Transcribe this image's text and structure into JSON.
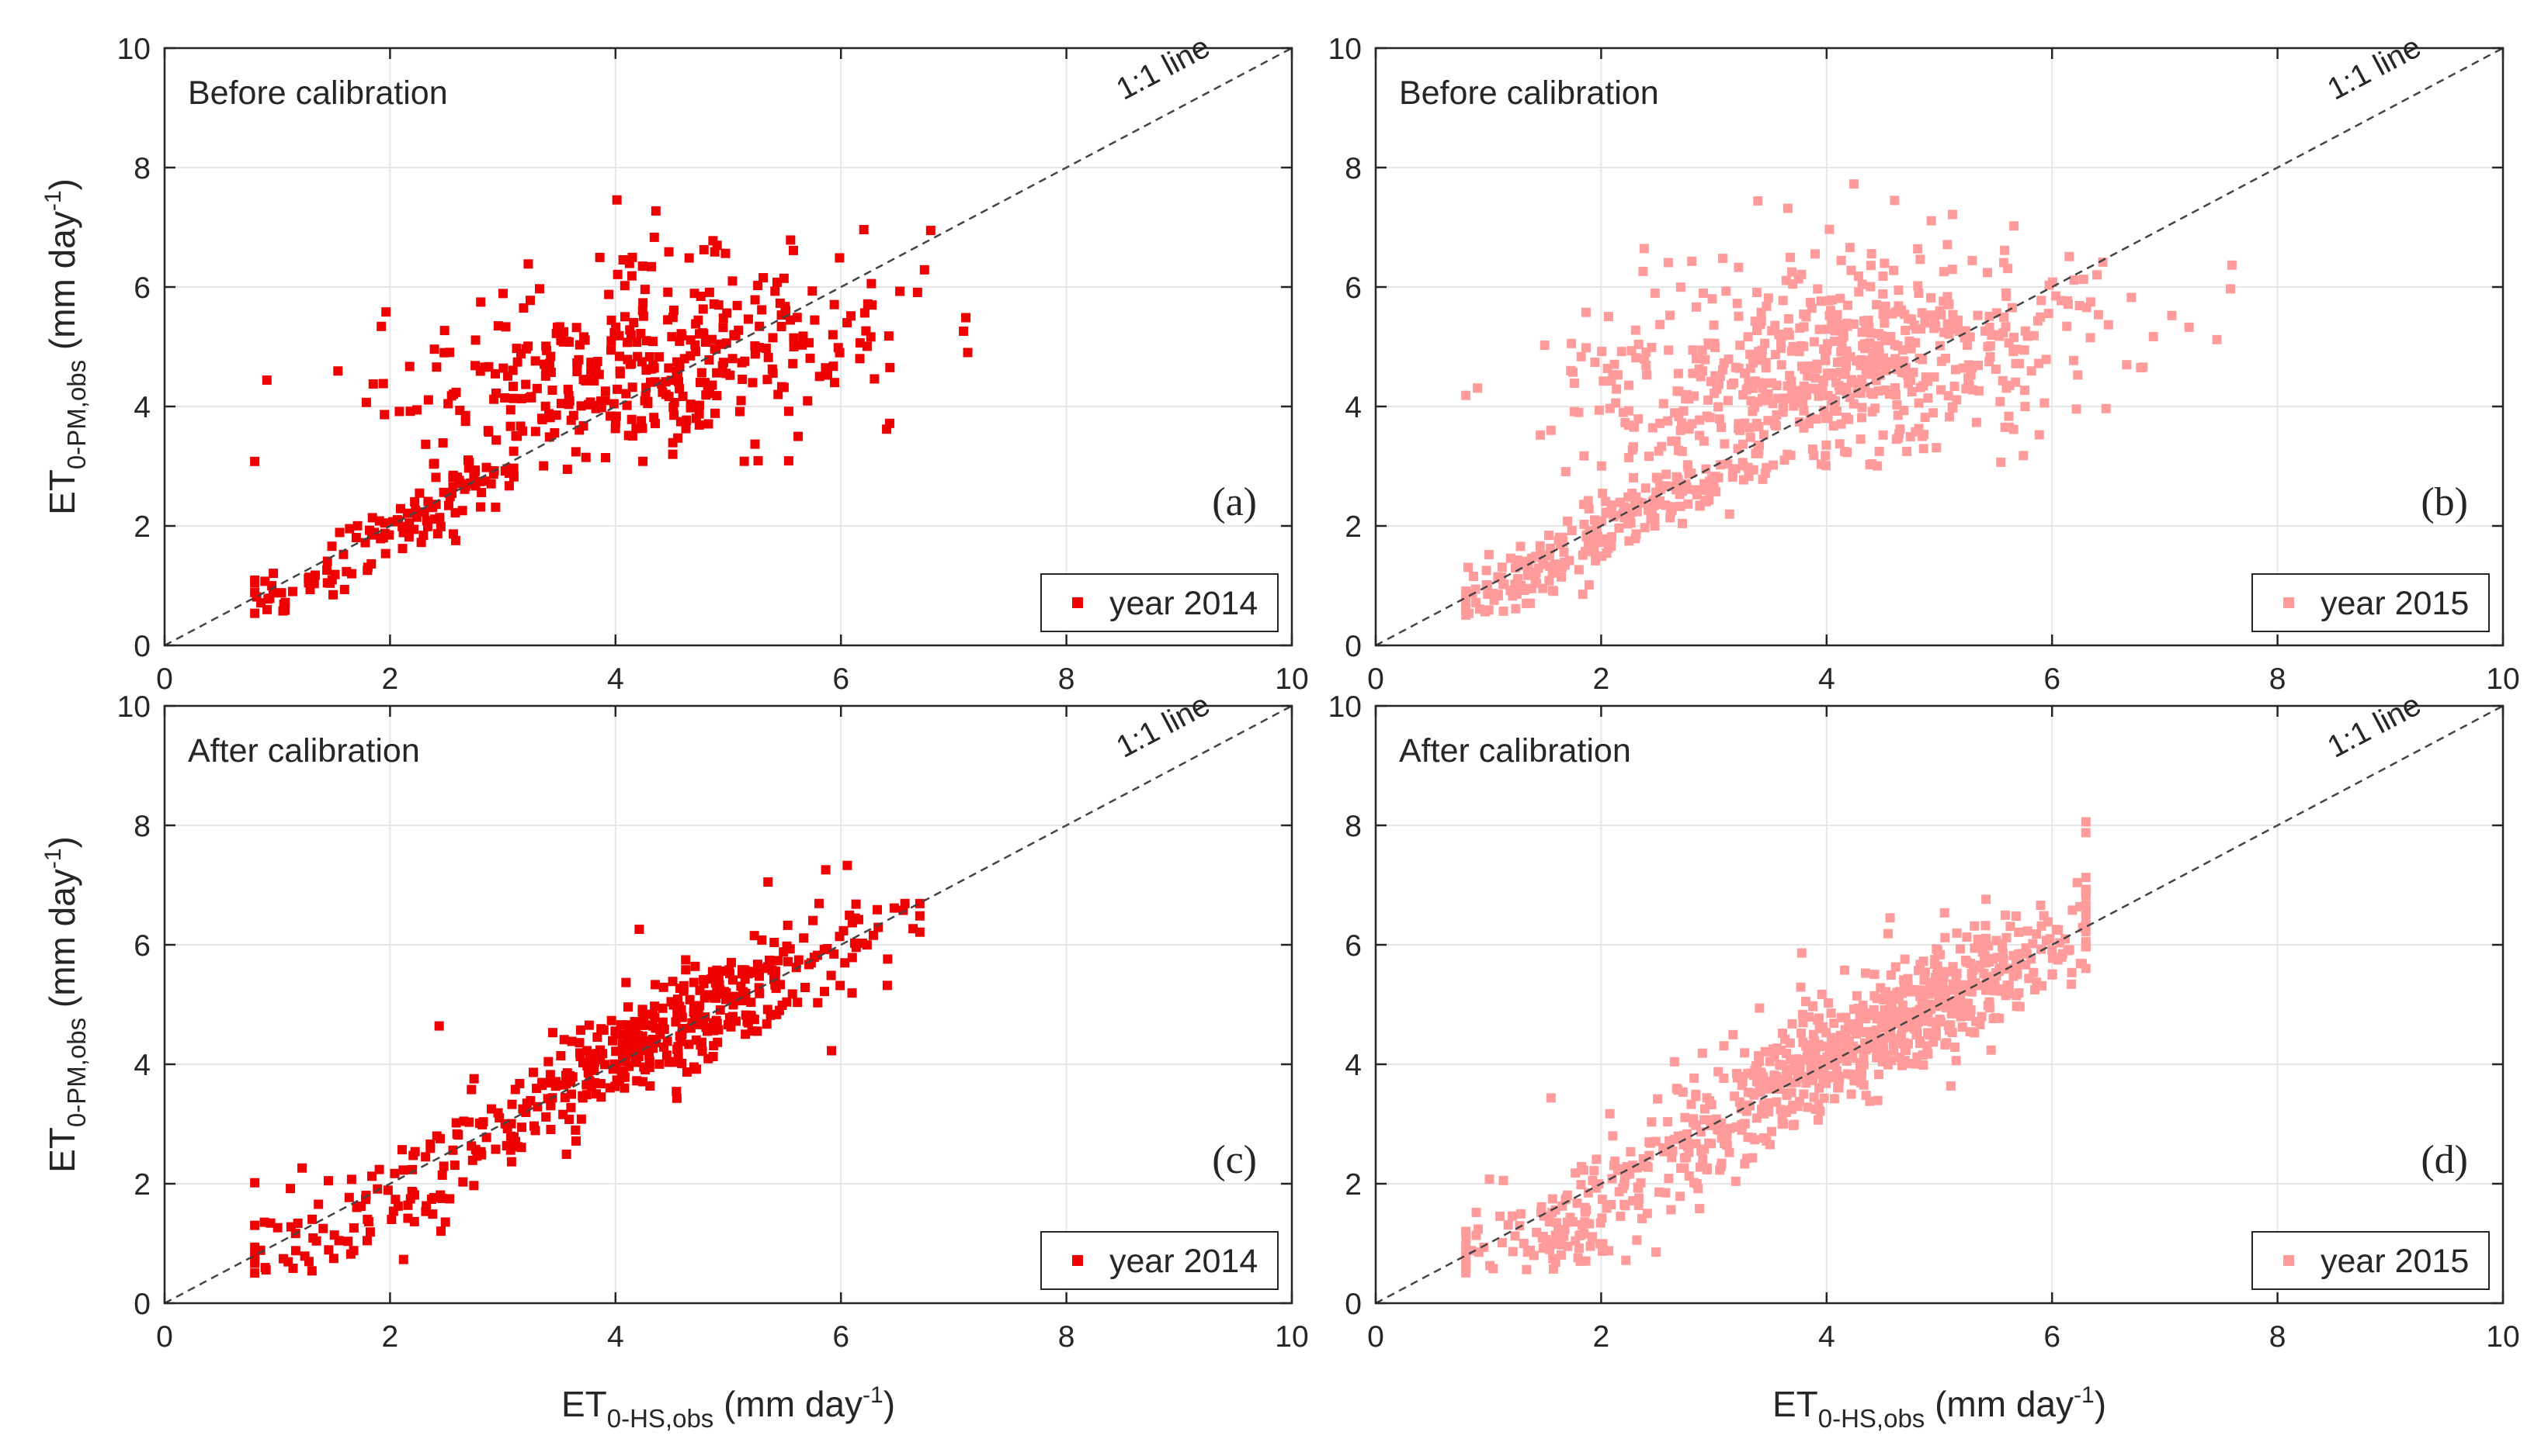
{
  "figure": {
    "x_axis_label": {
      "main": "ET",
      "sub": "0-HS,obs",
      "unit_pre": " (mm day",
      "sup": "-1",
      "unit_post": ")"
    },
    "y_axis_label": {
      "main": "ET",
      "sub": "0-PM,obs",
      "unit_pre": " (mm day",
      "sup": "-1",
      "unit_post": ")"
    },
    "reference_line_label": "1:1 line"
  },
  "chart_data": [
    {
      "type": "scatter",
      "panel": "(a)",
      "corner_label": "Before calibration",
      "series": [
        {
          "name": "year 2014",
          "color": "#ee0000",
          "seed": 2014,
          "n": 520,
          "stage": "before"
        }
      ],
      "xlim": [
        0,
        10
      ],
      "ylim": [
        0,
        10
      ],
      "xticks": [
        0,
        2,
        4,
        6,
        8,
        10
      ],
      "yticks": [
        0,
        2,
        4,
        6,
        8,
        10
      ],
      "grid": true,
      "legend": "bottom-right",
      "reference_line": "1:1 line"
    },
    {
      "type": "scatter",
      "panel": "(b)",
      "corner_label": "Before calibration",
      "series": [
        {
          "name": "year 2015",
          "color": "#ff9b9b",
          "seed": 2015,
          "n": 900,
          "stage": "before"
        }
      ],
      "xlim": [
        0,
        10
      ],
      "ylim": [
        0,
        10
      ],
      "xticks": [
        0,
        2,
        4,
        6,
        8,
        10
      ],
      "yticks": [
        0,
        2,
        4,
        6,
        8,
        10
      ],
      "grid": true,
      "legend": "bottom-right",
      "reference_line": "1:1 line"
    },
    {
      "type": "scatter",
      "panel": "(c)",
      "corner_label": "After calibration",
      "series": [
        {
          "name": "year 2014",
          "color": "#ee0000",
          "seed": 2014,
          "n": 520,
          "stage": "after"
        }
      ],
      "xlim": [
        0,
        10
      ],
      "ylim": [
        0,
        10
      ],
      "xticks": [
        0,
        2,
        4,
        6,
        8,
        10
      ],
      "yticks": [
        0,
        2,
        4,
        6,
        8,
        10
      ],
      "grid": true,
      "legend": "bottom-right",
      "reference_line": "1:1 line"
    },
    {
      "type": "scatter",
      "panel": "(d)",
      "corner_label": "After calibration",
      "series": [
        {
          "name": "year 2015",
          "color": "#ff9b9b",
          "seed": 2015,
          "n": 900,
          "stage": "after"
        }
      ],
      "xlim": [
        0,
        10
      ],
      "ylim": [
        0,
        10
      ],
      "xticks": [
        0,
        2,
        4,
        6,
        8,
        10
      ],
      "yticks": [
        0,
        2,
        4,
        6,
        8,
        10
      ],
      "grid": true,
      "legend": "bottom-right",
      "reference_line": "1:1 line"
    }
  ]
}
